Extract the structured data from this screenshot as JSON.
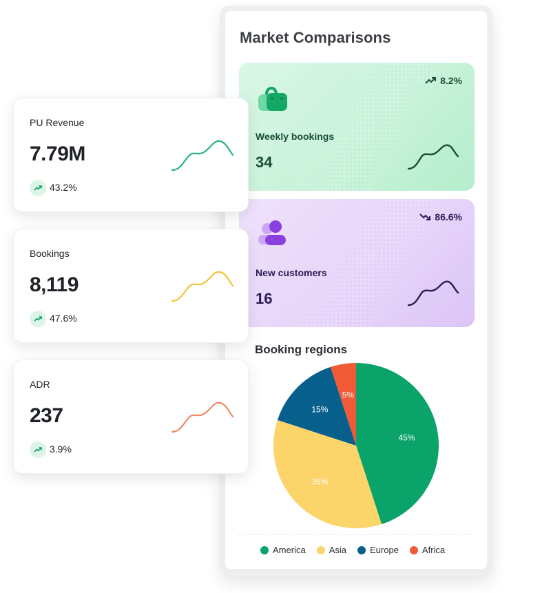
{
  "panel": {
    "title": "Market Comparisons",
    "cards": [
      {
        "label": "Weekly bookings",
        "value": "34",
        "trend": "8.2%",
        "trend_dir": "up",
        "color": "#1a4d3a",
        "icon": "shopping-bag-icon"
      },
      {
        "label": "New customers",
        "value": "16",
        "trend": "86.6%",
        "trend_dir": "down",
        "color": "#2c1b55",
        "icon": "user-icon"
      }
    ]
  },
  "stats": [
    {
      "label": "PU Revenue",
      "value": "7.79M",
      "change": "43.2%",
      "spark_color": "#27b57a"
    },
    {
      "label": "Bookings",
      "value": "8,119",
      "change": "47.6%",
      "spark_color": "#f5c23a"
    },
    {
      "label": "ADR",
      "value": "237",
      "change": "3.9%",
      "spark_color": "#ef8a66"
    }
  ],
  "chart_data": {
    "type": "pie",
    "title": "Booking regions",
    "categories": [
      "America",
      "Asia",
      "Europe",
      "Africa"
    ],
    "values": [
      45,
      35,
      15,
      5
    ],
    "labels": [
      "45%",
      "35%",
      "15%",
      "5%"
    ],
    "colors": [
      "#0aa36a",
      "#fcd56a",
      "#075f8c",
      "#f15a36"
    ],
    "legend": "bottom"
  }
}
